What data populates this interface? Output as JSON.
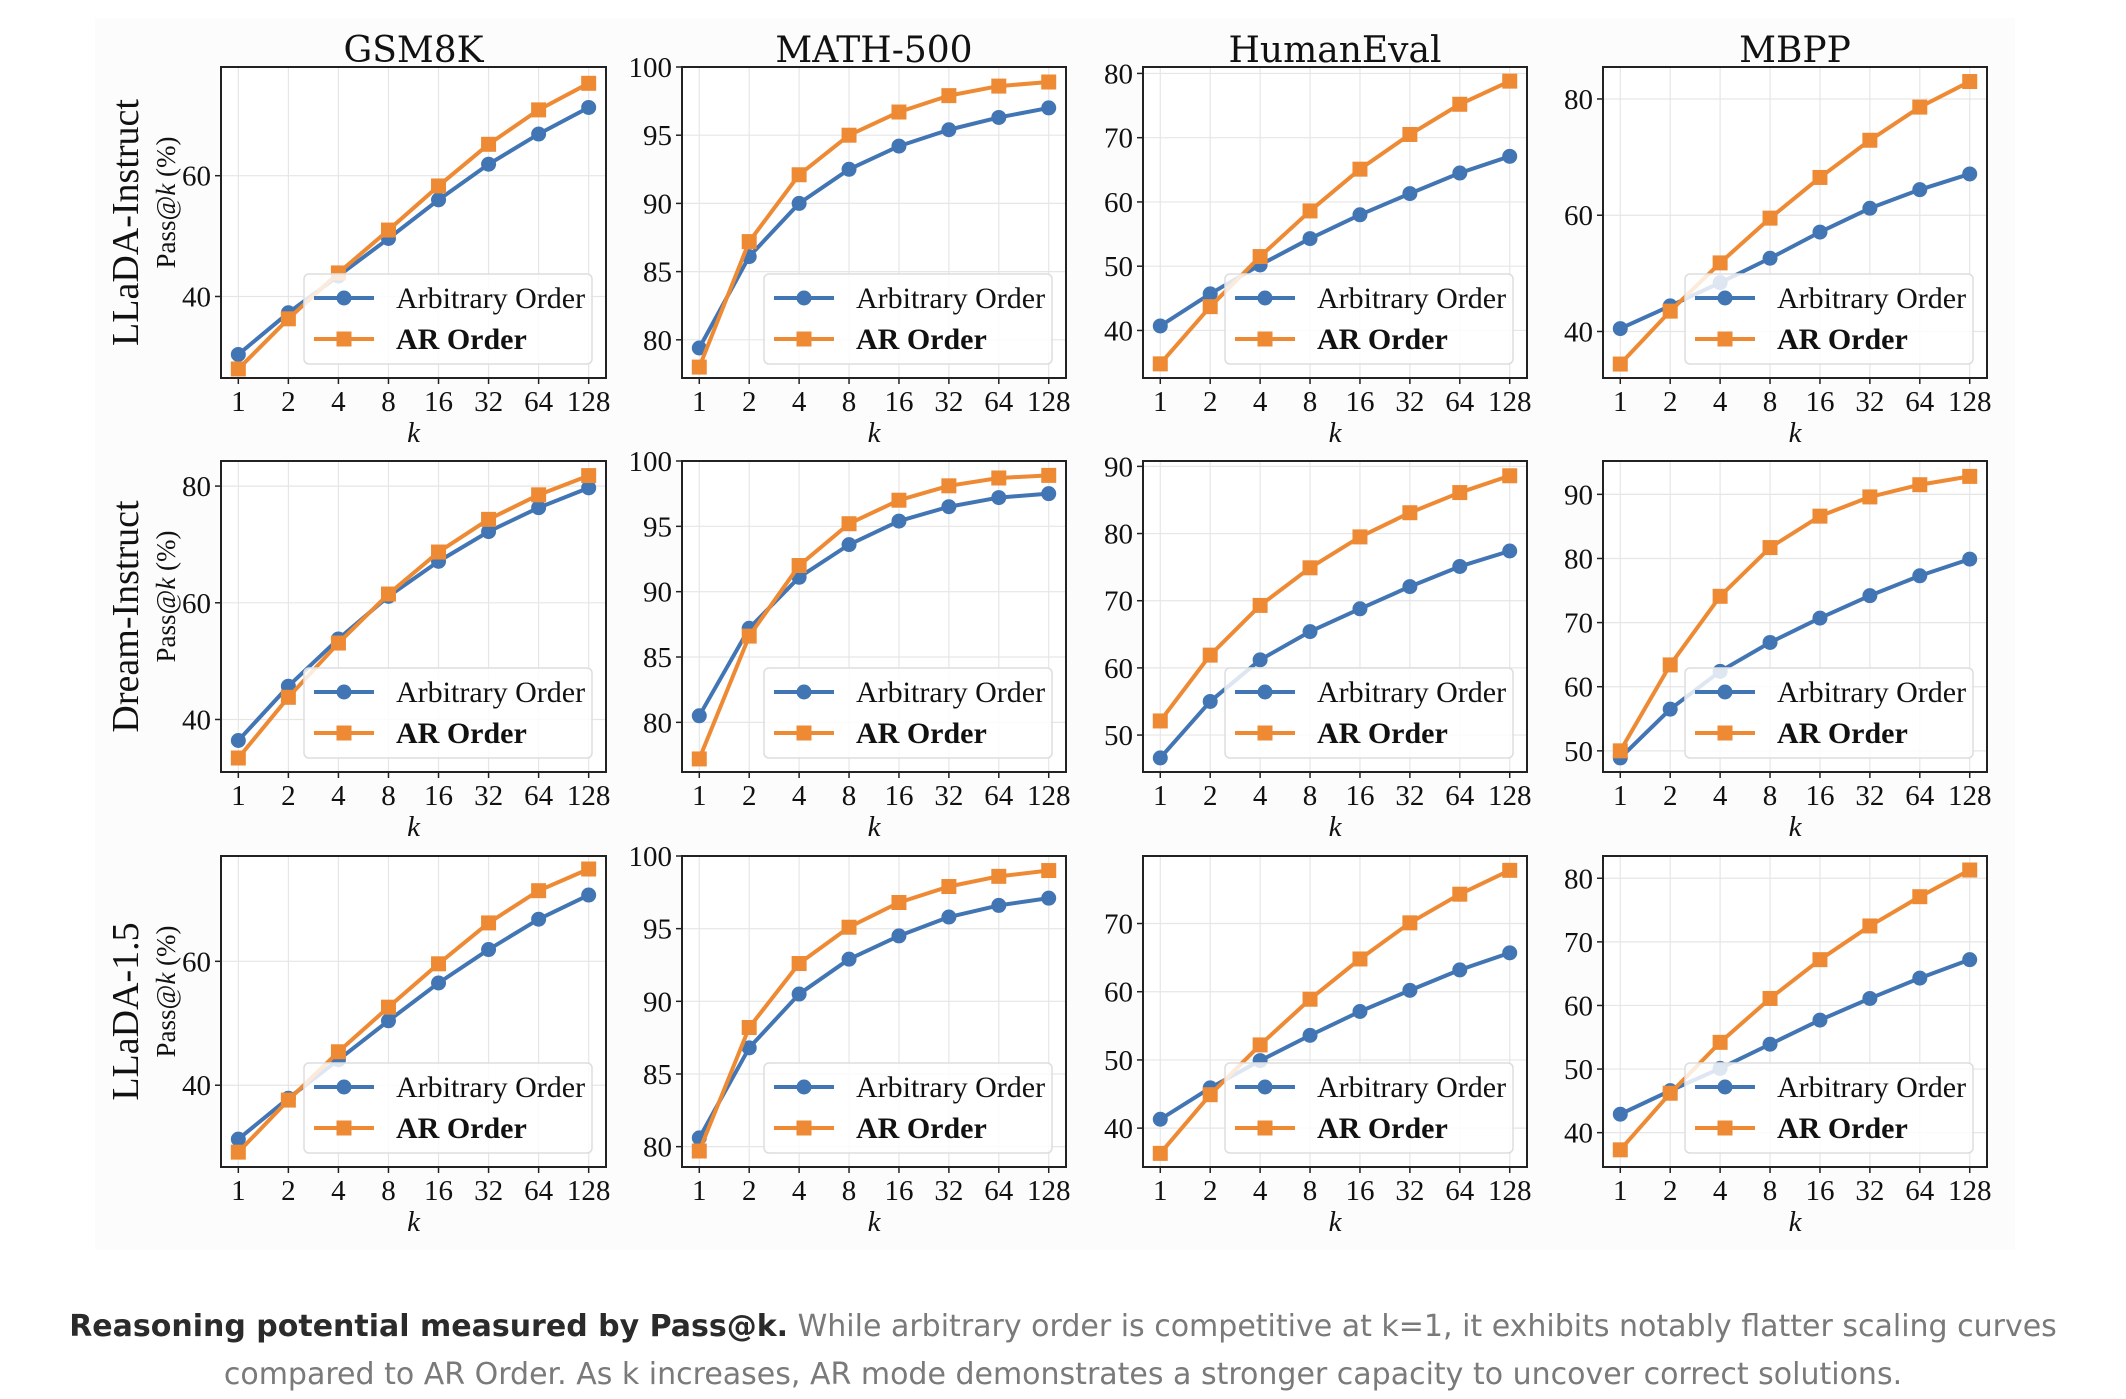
{
  "caption": {
    "bold": "Reasoning potential measured by Pass@k.",
    "line1": "While arbitrary order is competitive at k=1, it exhibits notably flatter scaling curves",
    "line2": "compared to AR Order. As k increases, AR mode demonstrates a stronger capacity to uncover correct solutions."
  },
  "chart_data": {
    "type": "line",
    "layout": "grid 3 rows x 4 columns",
    "column_titles": [
      "GSM8K",
      "MATH-500",
      "HumanEval",
      "MBPP"
    ],
    "row_labels": [
      "LLaDA-Instruct",
      "Dream-Instruct",
      "LLaDA-1.5"
    ],
    "ylabel": "Pass@k (%)",
    "xlabel": "k",
    "x": [
      1,
      2,
      4,
      8,
      16,
      32,
      64,
      128
    ],
    "x_scale": "log2",
    "grid": true,
    "legend": {
      "placement": "lower-right",
      "entries": [
        "Arbitrary Order",
        "AR Order"
      ]
    },
    "colors": {
      "Arbitrary Order": "#4275b3",
      "AR Order": "#ee8a34"
    },
    "markers": {
      "Arbitrary Order": "circle",
      "AR Order": "square"
    },
    "panels": [
      {
        "row": "LLaDA-Instruct",
        "title": "GSM8K",
        "ylim": [
          26.5,
          78
        ],
        "yticks": [
          40,
          60
        ],
        "series": [
          {
            "name": "Arbitrary Order",
            "values": [
              30.4,
              37.3,
              43.4,
              49.6,
              56.0,
              61.9,
              66.9,
              71.3
            ]
          },
          {
            "name": "AR Order",
            "values": [
              28.0,
              36.3,
              43.9,
              51.0,
              58.3,
              65.2,
              70.9,
              75.3
            ]
          }
        ]
      },
      {
        "row": "LLaDA-Instruct",
        "title": "MATH-500",
        "ylim": [
          77.2,
          100
        ],
        "yticks": [
          80,
          85,
          90,
          95,
          100
        ],
        "series": [
          {
            "name": "Arbitrary Order",
            "values": [
              79.4,
              86.1,
              90.0,
              92.5,
              94.2,
              95.4,
              96.3,
              97.0
            ]
          },
          {
            "name": "AR Order",
            "values": [
              78.0,
              87.2,
              92.1,
              95.0,
              96.7,
              97.9,
              98.6,
              98.9
            ]
          }
        ]
      },
      {
        "row": "LLaDA-Instruct",
        "title": "HumanEval",
        "ylim": [
          32.6,
          81
        ],
        "yticks": [
          40,
          50,
          60,
          70,
          80
        ],
        "series": [
          {
            "name": "Arbitrary Order",
            "values": [
              40.7,
              45.7,
              50.2,
              54.3,
              58.0,
              61.3,
              64.5,
              67.1
            ]
          },
          {
            "name": "AR Order",
            "values": [
              34.8,
              43.7,
              51.5,
              58.6,
              65.1,
              70.5,
              75.2,
              78.8
            ]
          }
        ]
      },
      {
        "row": "LLaDA-Instruct",
        "title": "MBPP",
        "ylim": [
          32,
          85.5
        ],
        "yticks": [
          40,
          60,
          80
        ],
        "series": [
          {
            "name": "Arbitrary Order",
            "values": [
              40.5,
              44.4,
              48.4,
              52.6,
              57.1,
              61.2,
              64.4,
              67.1
            ]
          },
          {
            "name": "AR Order",
            "values": [
              34.4,
              43.5,
              51.8,
              59.5,
              66.5,
              72.9,
              78.6,
              83.0
            ]
          }
        ]
      },
      {
        "row": "Dream-Instruct",
        "title": "GSM8K",
        "ylim": [
          31,
          84.3
        ],
        "yticks": [
          40,
          60,
          80
        ],
        "series": [
          {
            "name": "Arbitrary Order",
            "values": [
              36.4,
              45.7,
              53.8,
              61.1,
              67.1,
              72.2,
              76.3,
              79.7
            ]
          },
          {
            "name": "AR Order",
            "values": [
              33.4,
              43.8,
              53.1,
              61.5,
              68.7,
              74.3,
              78.5,
              81.8
            ]
          }
        ]
      },
      {
        "row": "Dream-Instruct",
        "title": "MATH-500",
        "ylim": [
          76.2,
          100
        ],
        "yticks": [
          80,
          85,
          90,
          95,
          100
        ],
        "series": [
          {
            "name": "Arbitrary Order",
            "values": [
              80.5,
              87.2,
              91.1,
              93.6,
              95.4,
              96.5,
              97.2,
              97.5
            ]
          },
          {
            "name": "AR Order",
            "values": [
              77.2,
              86.6,
              92.0,
              95.2,
              97.0,
              98.1,
              98.7,
              98.9
            ]
          }
        ]
      },
      {
        "row": "Dream-Instruct",
        "title": "HumanEval",
        "ylim": [
          44.5,
          90.8
        ],
        "yticks": [
          50,
          60,
          70,
          80,
          90
        ],
        "series": [
          {
            "name": "Arbitrary Order",
            "values": [
              46.6,
              55.0,
              61.2,
              65.4,
              68.8,
              72.1,
              75.1,
              77.4
            ]
          },
          {
            "name": "AR Order",
            "values": [
              52.1,
              61.9,
              69.3,
              74.9,
              79.5,
              83.1,
              86.1,
              88.6
            ]
          }
        ]
      },
      {
        "row": "Dream-Instruct",
        "title": "MBPP",
        "ylim": [
          46.7,
          95.2
        ],
        "yticks": [
          50,
          60,
          70,
          80,
          90
        ],
        "series": [
          {
            "name": "Arbitrary Order",
            "values": [
              48.9,
              56.5,
              62.4,
              66.9,
              70.7,
              74.2,
              77.3,
              79.9
            ]
          },
          {
            "name": "AR Order",
            "values": [
              50.0,
              63.4,
              74.1,
              81.7,
              86.6,
              89.6,
              91.5,
              92.8
            ]
          }
        ]
      },
      {
        "row": "LLaDA-1.5",
        "title": "GSM8K",
        "ylim": [
          26.8,
          77
        ],
        "yticks": [
          40,
          60
        ],
        "series": [
          {
            "name": "Arbitrary Order",
            "values": [
              31.3,
              37.9,
              44.1,
              50.4,
              56.5,
              61.9,
              66.8,
              70.7
            ]
          },
          {
            "name": "AR Order",
            "values": [
              29.2,
              37.6,
              45.4,
              52.6,
              59.6,
              66.2,
              71.4,
              74.9
            ]
          }
        ]
      },
      {
        "row": "LLaDA-1.5",
        "title": "MATH-500",
        "ylim": [
          78.6,
          100
        ],
        "yticks": [
          80,
          85,
          90,
          95,
          100
        ],
        "series": [
          {
            "name": "Arbitrary Order",
            "values": [
              80.6,
              86.8,
              90.5,
              92.9,
              94.5,
              95.8,
              96.6,
              97.1
            ]
          },
          {
            "name": "AR Order",
            "values": [
              79.7,
              88.2,
              92.6,
              95.1,
              96.8,
              97.9,
              98.6,
              99.0
            ]
          }
        ]
      },
      {
        "row": "LLaDA-1.5",
        "title": "HumanEval",
        "ylim": [
          34.3,
          79.9
        ],
        "yticks": [
          40,
          50,
          60,
          70
        ],
        "series": [
          {
            "name": "Arbitrary Order",
            "values": [
              41.3,
              45.9,
              49.9,
              53.6,
              57.1,
              60.2,
              63.2,
              65.7
            ]
          },
          {
            "name": "AR Order",
            "values": [
              36.3,
              44.9,
              52.2,
              58.9,
              64.8,
              70.1,
              74.3,
              77.8
            ]
          }
        ]
      },
      {
        "row": "LLaDA-1.5",
        "title": "MBPP",
        "ylim": [
          34.6,
          83.5
        ],
        "yticks": [
          40,
          50,
          60,
          70,
          80
        ],
        "series": [
          {
            "name": "Arbitrary Order",
            "values": [
              42.9,
              46.6,
              50.1,
              53.9,
              57.7,
              61.1,
              64.3,
              67.2
            ]
          },
          {
            "name": "AR Order",
            "values": [
              37.3,
              46.2,
              54.2,
              61.1,
              67.2,
              72.5,
              77.1,
              81.3
            ]
          }
        ]
      }
    ]
  }
}
